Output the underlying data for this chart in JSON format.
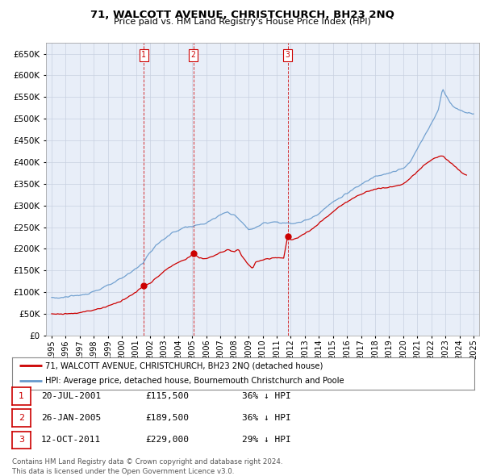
{
  "title": "71, WALCOTT AVENUE, CHRISTCHURCH, BH23 2NQ",
  "subtitle": "Price paid vs. HM Land Registry's House Price Index (HPI)",
  "legend_line1": "71, WALCOTT AVENUE, CHRISTCHURCH, BH23 2NQ (detached house)",
  "legend_line2": "HPI: Average price, detached house, Bournemouth Christchurch and Poole",
  "footer1": "Contains HM Land Registry data © Crown copyright and database right 2024.",
  "footer2": "This data is licensed under the Open Government Licence v3.0.",
  "transactions": [
    {
      "num": 1,
      "date": "20-JUL-2001",
      "price": 115500,
      "pct": "36%",
      "dir": "↓",
      "x": 2001.55
    },
    {
      "num": 2,
      "date": "26-JAN-2005",
      "price": 189500,
      "pct": "36%",
      "dir": "↓",
      "x": 2005.07
    },
    {
      "num": 3,
      "date": "12-OCT-2011",
      "price": 229000,
      "pct": "29%",
      "dir": "↓",
      "x": 2011.78
    }
  ],
  "price_color": "#cc0000",
  "hpi_color": "#6699cc",
  "vline_color": "#cc0000",
  "grid_color": "#c8d0e0",
  "bg_color": "#ffffff",
  "plot_bg_color": "#e8eef8",
  "ylim": [
    0,
    675000
  ],
  "ytick_step": 50000,
  "xmin": 1994.6,
  "xmax": 2025.4
}
